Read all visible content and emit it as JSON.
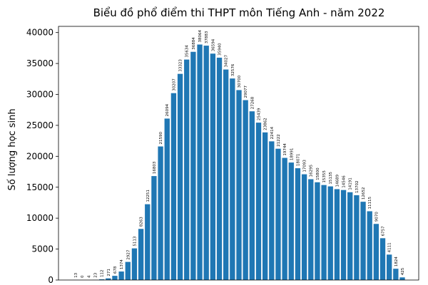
{
  "chart_data": {
    "type": "bar",
    "title": "Biểu đồ phổ điểm thi THPT môn Tiếng Anh - năm 2022",
    "xlabel": "",
    "ylabel": "Số lượng học sinh",
    "ylim": [
      0,
      41000
    ],
    "y_ticks": [
      0,
      5000,
      10000,
      15000,
      20000,
      25000,
      30000,
      35000,
      40000
    ],
    "bar_color": "#1f77b4",
    "grid": false,
    "values": [
      13,
      0,
      4,
      23,
      112,
      271,
      678,
      1374,
      2927,
      5113,
      8263,
      12251,
      16803,
      21590,
      26094,
      30207,
      33323,
      35634,
      36884,
      38064,
      37883,
      36594,
      35940,
      34027,
      32576,
      30700,
      29077,
      27268,
      25439,
      23862,
      22414,
      21222,
      19744,
      18991,
      18071,
      17093,
      16295,
      15800,
      15355,
      15135,
      14689,
      14546,
      14191,
      13702,
      12652,
      11115,
      9070,
      6757,
      4111,
      1824,
      425
    ]
  }
}
